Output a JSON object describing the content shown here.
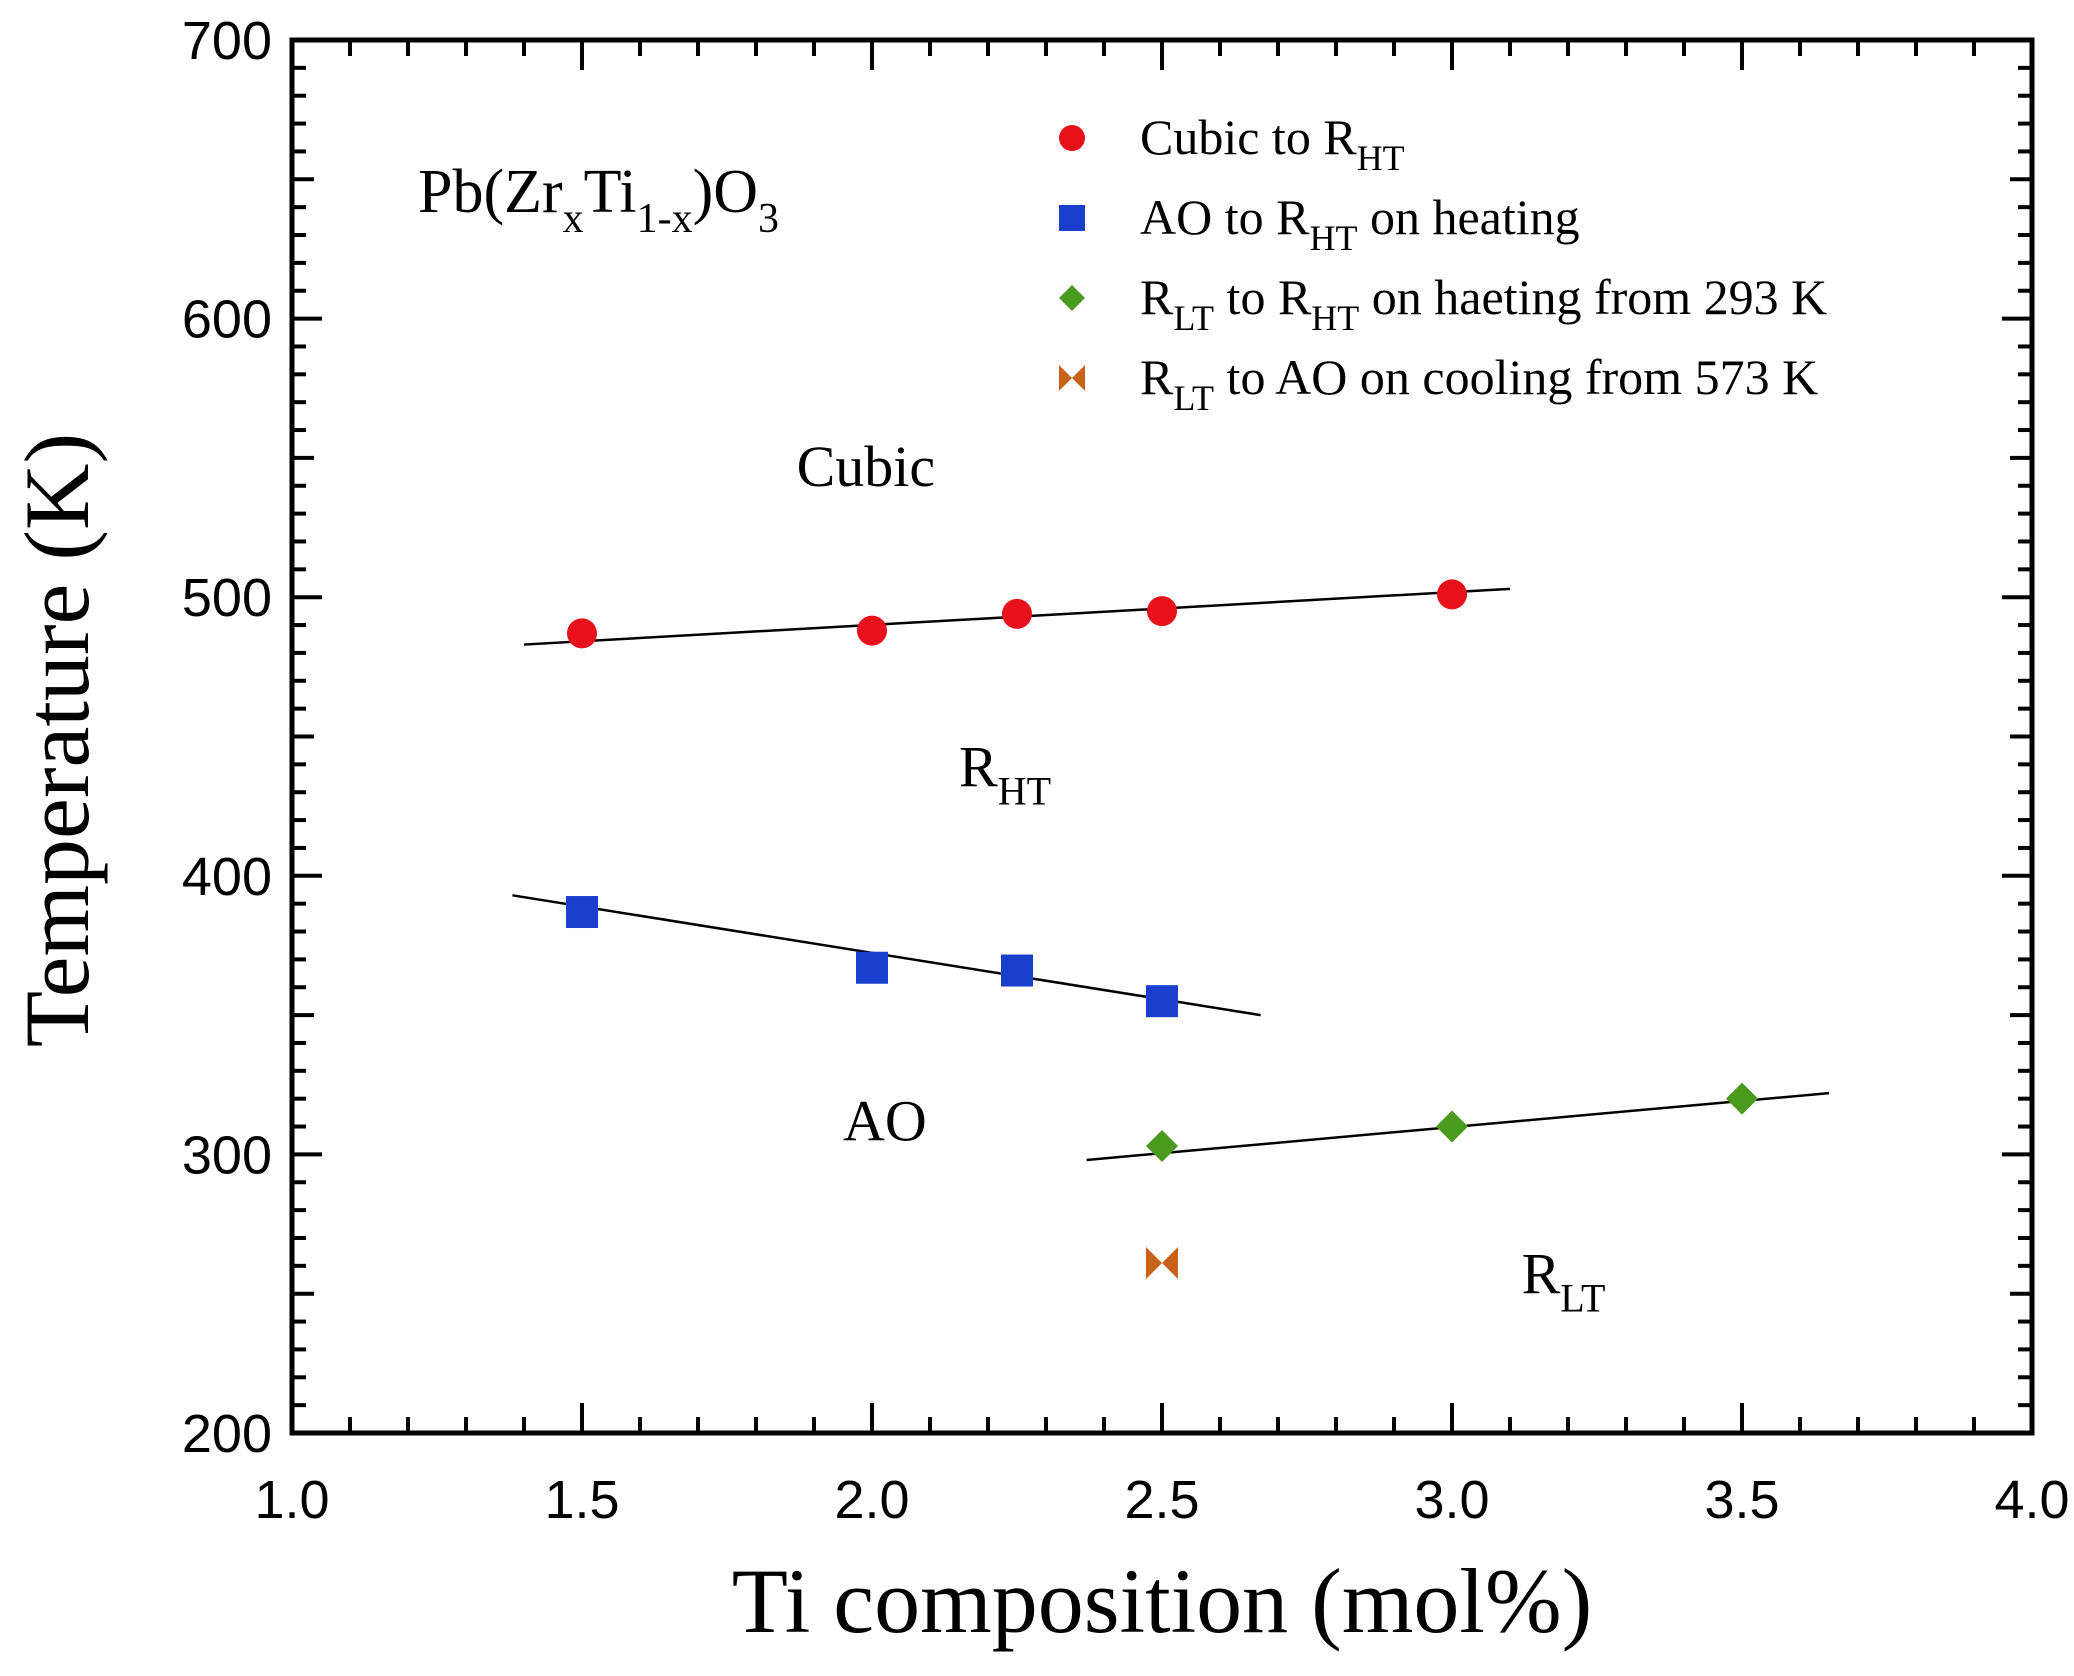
{
  "chart_data": {
    "type": "scatter",
    "title": "Pb(Zr_x Ti_1-x)O_3",
    "title_parts": {
      "base1": "Pb(Zr",
      "sub1": "x",
      "base2": "Ti",
      "sub2": "1-x",
      "base3": ")O",
      "sub3": "3"
    },
    "xlabel": "Ti composition (mol%)",
    "ylabel": "Temperature (K)",
    "xlim": [
      1.0,
      4.0
    ],
    "ylim": [
      200,
      700
    ],
    "xticks": [
      "1.0",
      "1.5",
      "2.0",
      "2.5",
      "3.0",
      "3.5",
      "4.0"
    ],
    "yticks": [
      "200",
      "300",
      "400",
      "500",
      "600",
      "700"
    ],
    "legend_position": "top-right",
    "series": [
      {
        "name": "Cubic to R_HT",
        "legend": {
          "pre": "Cubic to R",
          "sub": "HT",
          "post": ""
        },
        "marker": "circle",
        "color": "#e8111b",
        "points": [
          [
            1.5,
            487
          ],
          [
            2.0,
            488
          ],
          [
            2.25,
            494
          ],
          [
            2.5,
            495
          ],
          [
            3.0,
            501
          ]
        ],
        "fit": [
          [
            1.4,
            483
          ],
          [
            3.1,
            503
          ]
        ]
      },
      {
        "name": "AO to R_HT on heating",
        "legend": {
          "pre": "AO to R",
          "sub": "HT",
          "post": " on heating"
        },
        "marker": "square",
        "color": "#1a3fcc",
        "points": [
          [
            1.5,
            387
          ],
          [
            2.0,
            367
          ],
          [
            2.25,
            366
          ],
          [
            2.5,
            355
          ]
        ],
        "fit": [
          [
            1.38,
            393
          ],
          [
            2.67,
            350
          ]
        ]
      },
      {
        "name": "R_LT to R_HT on haeting from 293 K",
        "legend": {
          "pre": "R",
          "sub": "LT",
          "post": " to R",
          "sub2": "HT",
          "post2": " on haeting from 293 K"
        },
        "marker": "diamond",
        "color": "#4a9a1e",
        "points": [
          [
            2.5,
            303
          ],
          [
            3.0,
            310
          ],
          [
            3.5,
            320
          ]
        ],
        "fit": [
          [
            2.37,
            298
          ],
          [
            3.65,
            322
          ]
        ]
      },
      {
        "name": "R_LT to AO on cooling from 573 K",
        "legend": {
          "pre": "R",
          "sub": "LT",
          "post": " to AO on cooling from 573 K"
        },
        "marker": "bowtie",
        "color": "#c8621a",
        "points": [
          [
            2.5,
            261
          ]
        ]
      }
    ],
    "annotations": [
      {
        "text": "Cubic",
        "sub": "",
        "x": 1.87,
        "y": 540
      },
      {
        "text": "R",
        "sub": "HT",
        "x": 2.15,
        "y": 432
      },
      {
        "text": "AO",
        "sub": "",
        "x": 1.95,
        "y": 305
      },
      {
        "text": "R",
        "sub": "LT",
        "x": 3.12,
        "y": 250
      }
    ]
  }
}
